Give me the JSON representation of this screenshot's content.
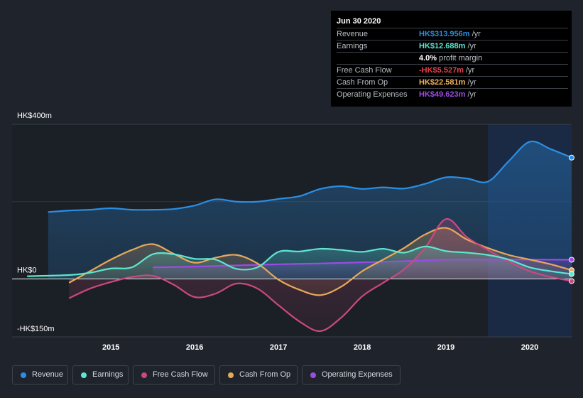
{
  "tooltip": {
    "date": "Jun 30 2020",
    "rows": [
      {
        "label": "Revenue",
        "value": "HK$313.956m",
        "unit": "/yr",
        "color": "#2b8ee2"
      },
      {
        "label": "Earnings",
        "value": "HK$12.688m",
        "unit": "/yr",
        "color": "#5ee6cf"
      },
      {
        "label": "",
        "value": "4.0%",
        "unit": "profit margin",
        "color": "#ffffff"
      },
      {
        "label": "Free Cash Flow",
        "value": "-HK$5.527m",
        "unit": "/yr",
        "color": "#e5404f"
      },
      {
        "label": "Cash From Op",
        "value": "HK$22.581m",
        "unit": "/yr",
        "color": "#f0b35a"
      },
      {
        "label": "Operating Expenses",
        "value": "HK$49.623m",
        "unit": "/yr",
        "color": "#9b4ce5"
      }
    ]
  },
  "legend": [
    {
      "label": "Revenue",
      "color": "#2b8ee2"
    },
    {
      "label": "Earnings",
      "color": "#5ee6cf"
    },
    {
      "label": "Free Cash Flow",
      "color": "#c94a7d"
    },
    {
      "label": "Cash From Op",
      "color": "#e8a85a"
    },
    {
      "label": "Operating Expenses",
      "color": "#9b4ce5"
    }
  ],
  "chart_data": {
    "type": "area",
    "y_unit": "HK$m",
    "ylim": [
      -150,
      400
    ],
    "y_tick_labels": [
      {
        "value": 400,
        "label": "HK$400m"
      },
      {
        "value": 0,
        "label": "HK$0"
      },
      {
        "value": -150,
        "label": "-HK$150m"
      }
    ],
    "x_tick_labels": [
      {
        "value": 2015,
        "label": "2015"
      },
      {
        "value": 2016,
        "label": "2016"
      },
      {
        "value": 2017,
        "label": "2017"
      },
      {
        "value": 2018,
        "label": "2018"
      },
      {
        "value": 2019,
        "label": "2019"
      },
      {
        "value": 2020,
        "label": "2020"
      }
    ],
    "xlim": [
      2013.9,
      2020.5
    ],
    "forecast_start": 2019.5,
    "series": [
      {
        "name": "Revenue",
        "color": "#2b8ee2",
        "points": [
          [
            2014.25,
            173
          ],
          [
            2014.5,
            177
          ],
          [
            2014.75,
            179
          ],
          [
            2015.0,
            183
          ],
          [
            2015.25,
            179
          ],
          [
            2015.5,
            179
          ],
          [
            2015.75,
            181
          ],
          [
            2016.0,
            190
          ],
          [
            2016.25,
            206
          ],
          [
            2016.5,
            200
          ],
          [
            2016.75,
            200
          ],
          [
            2017.0,
            207
          ],
          [
            2017.25,
            214
          ],
          [
            2017.5,
            233
          ],
          [
            2017.75,
            240
          ],
          [
            2018.0,
            233
          ],
          [
            2018.25,
            237
          ],
          [
            2018.5,
            234
          ],
          [
            2018.75,
            246
          ],
          [
            2019.0,
            263
          ],
          [
            2019.25,
            260
          ],
          [
            2019.5,
            252
          ],
          [
            2019.75,
            305
          ],
          [
            2020.0,
            355
          ],
          [
            2020.25,
            336
          ],
          [
            2020.5,
            314
          ]
        ]
      },
      {
        "name": "Earnings",
        "color": "#5ee6cf",
        "points": [
          [
            2014.0,
            7
          ],
          [
            2014.5,
            10
          ],
          [
            2014.75,
            16
          ],
          [
            2015.0,
            27
          ],
          [
            2015.25,
            30
          ],
          [
            2015.5,
            64
          ],
          [
            2015.75,
            64
          ],
          [
            2016.0,
            52
          ],
          [
            2016.25,
            50
          ],
          [
            2016.5,
            26
          ],
          [
            2016.75,
            30
          ],
          [
            2017.0,
            70
          ],
          [
            2017.25,
            71
          ],
          [
            2017.5,
            78
          ],
          [
            2017.75,
            75
          ],
          [
            2018.0,
            70
          ],
          [
            2018.25,
            78
          ],
          [
            2018.5,
            68
          ],
          [
            2018.75,
            84
          ],
          [
            2019.0,
            72
          ],
          [
            2019.25,
            68
          ],
          [
            2019.5,
            62
          ],
          [
            2019.75,
            50
          ],
          [
            2020.0,
            30
          ],
          [
            2020.25,
            20
          ],
          [
            2020.5,
            12.7
          ]
        ]
      },
      {
        "name": "Free Cash Flow",
        "color": "#c94a7d",
        "points": [
          [
            2014.5,
            -50
          ],
          [
            2014.75,
            -25
          ],
          [
            2015.0,
            -8
          ],
          [
            2015.25,
            5
          ],
          [
            2015.5,
            8
          ],
          [
            2015.75,
            -15
          ],
          [
            2016.0,
            -47
          ],
          [
            2016.25,
            -38
          ],
          [
            2016.5,
            -12
          ],
          [
            2016.75,
            -25
          ],
          [
            2017.0,
            -68
          ],
          [
            2017.25,
            -110
          ],
          [
            2017.5,
            -135
          ],
          [
            2017.75,
            -100
          ],
          [
            2018.0,
            -45
          ],
          [
            2018.25,
            -10
          ],
          [
            2018.5,
            25
          ],
          [
            2018.75,
            80
          ],
          [
            2019.0,
            155
          ],
          [
            2019.25,
            108
          ],
          [
            2019.5,
            75
          ],
          [
            2019.75,
            45
          ],
          [
            2020.0,
            20
          ],
          [
            2020.25,
            5
          ],
          [
            2020.5,
            -5.5
          ]
        ]
      },
      {
        "name": "Cash From Op",
        "color": "#e8a85a",
        "points": [
          [
            2014.5,
            -10
          ],
          [
            2014.75,
            20
          ],
          [
            2015.0,
            50
          ],
          [
            2015.25,
            75
          ],
          [
            2015.5,
            90
          ],
          [
            2015.75,
            65
          ],
          [
            2016.0,
            42
          ],
          [
            2016.25,
            55
          ],
          [
            2016.5,
            62
          ],
          [
            2016.75,
            40
          ],
          [
            2017.0,
            -2
          ],
          [
            2017.25,
            -28
          ],
          [
            2017.5,
            -42
          ],
          [
            2017.75,
            -20
          ],
          [
            2018.0,
            20
          ],
          [
            2018.25,
            50
          ],
          [
            2018.5,
            80
          ],
          [
            2018.75,
            115
          ],
          [
            2019.0,
            132
          ],
          [
            2019.25,
            102
          ],
          [
            2019.5,
            80
          ],
          [
            2019.75,
            62
          ],
          [
            2020.0,
            50
          ],
          [
            2020.25,
            38
          ],
          [
            2020.5,
            22.6
          ]
        ]
      },
      {
        "name": "Operating Expenses",
        "color": "#9b4ce5",
        "points": [
          [
            2015.5,
            30
          ],
          [
            2016.0,
            32
          ],
          [
            2016.5,
            35
          ],
          [
            2017.0,
            38
          ],
          [
            2017.5,
            40
          ],
          [
            2018.0,
            43
          ],
          [
            2018.5,
            46
          ],
          [
            2019.0,
            50
          ],
          [
            2019.5,
            50
          ],
          [
            2020.0,
            50
          ],
          [
            2020.5,
            49.6
          ]
        ]
      }
    ]
  }
}
